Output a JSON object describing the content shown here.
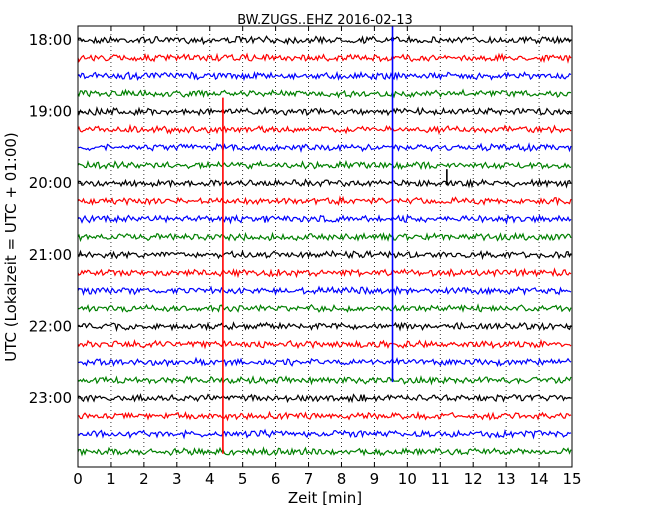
{
  "chart_data": {
    "type": "line",
    "title": "BW.ZUGS..EHZ 2016-02-13",
    "xlabel": "Zeit  [min]",
    "ylabel": "UTC (Lokalzeit = UTC + 01:00)",
    "xlim": [
      0,
      15
    ],
    "x_ticks": [
      "0",
      "1",
      "2",
      "3",
      "4",
      "5",
      "6",
      "7",
      "8",
      "9",
      "10",
      "11",
      "12",
      "13",
      "14",
      "15"
    ],
    "y_ticks": [
      "18:00",
      "19:00",
      "20:00",
      "21:00",
      "22:00",
      "23:00"
    ],
    "trace_interval_minutes": 15,
    "first_trace": "18:00",
    "trace_count": 24,
    "trace_colors": [
      "#000000",
      "#ff0000",
      "#0000ff",
      "#008000"
    ],
    "grid": {
      "vertical": true,
      "horizontal": false,
      "style": "dotted"
    },
    "events": [
      {
        "trace_start": "19:00",
        "minute": 4.4,
        "color": "#ff0000",
        "span_traces": 20
      },
      {
        "trace_start": "18:00",
        "minute": 9.55,
        "color": "#0000ff",
        "span_traces": 20
      },
      {
        "trace_start": "20:00",
        "minute": 11.2,
        "color": "#000000",
        "span_traces": 1
      }
    ]
  }
}
